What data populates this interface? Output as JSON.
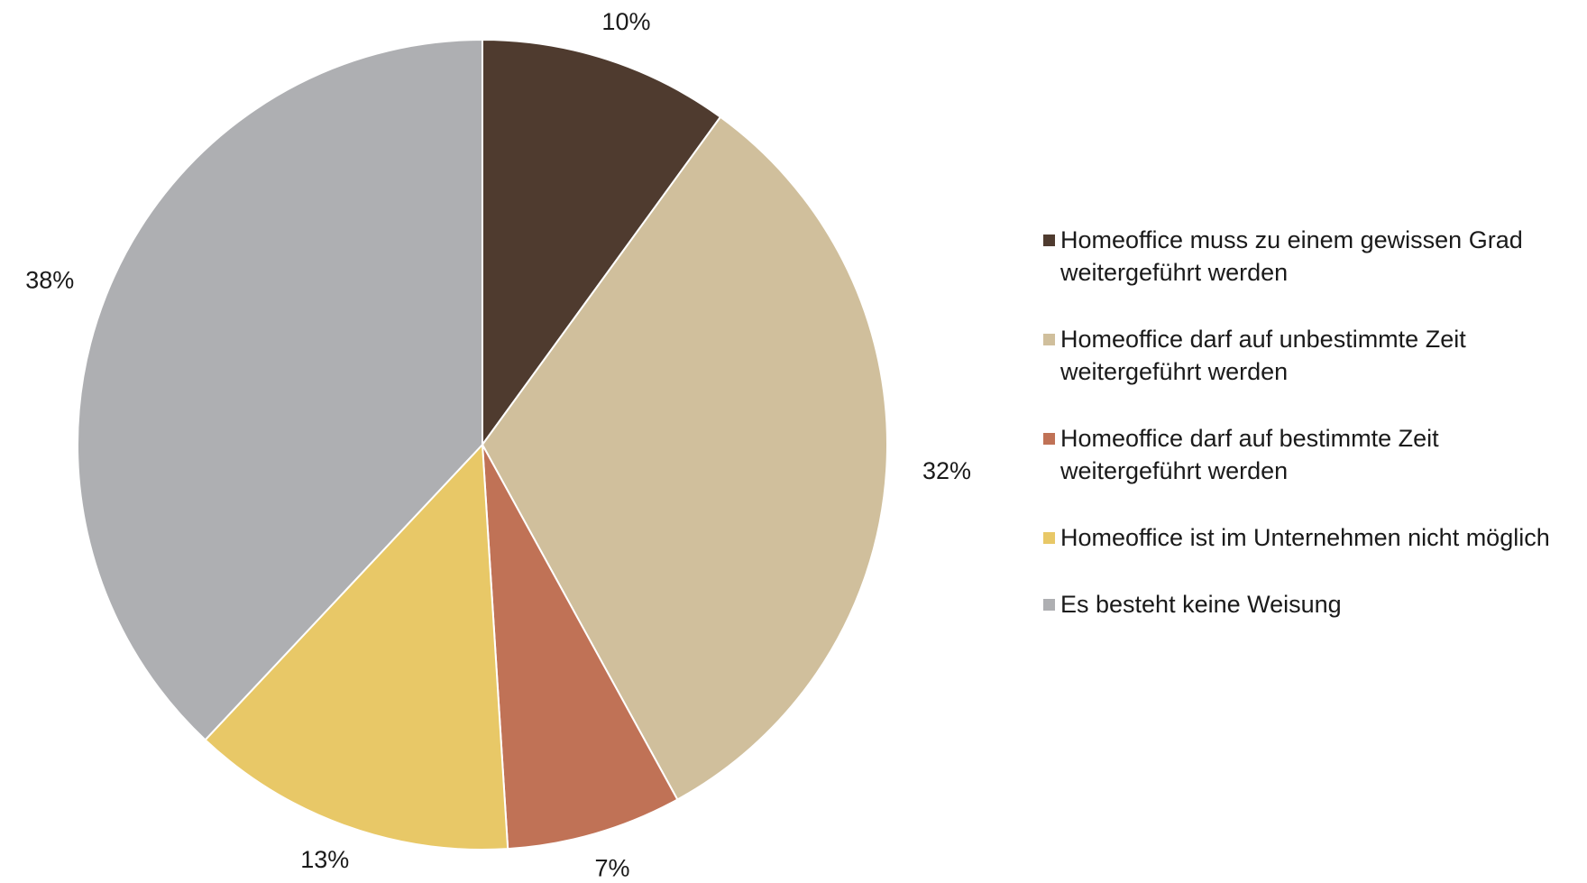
{
  "chart_data": {
    "type": "pie",
    "categories": [
      "Homeoffice muss zu einem gewissen Grad weitergeführt werden",
      "Homeoffice darf auf unbestimmte Zeit weitergeführt werden",
      "Homeoffice darf auf bestimmte Zeit weitergeführt werden",
      "Homeoffice ist im Unternehmen nicht möglich",
      "Es besteht keine Weisung"
    ],
    "values": [
      10,
      32,
      7,
      13,
      38
    ],
    "value_labels": [
      "10%",
      "32%",
      "7%",
      "13%",
      "38%"
    ],
    "colors": [
      "#4f3b2f",
      "#d0bf9c",
      "#c07256",
      "#e8c867",
      "#aeafb2"
    ],
    "legend": "right"
  }
}
